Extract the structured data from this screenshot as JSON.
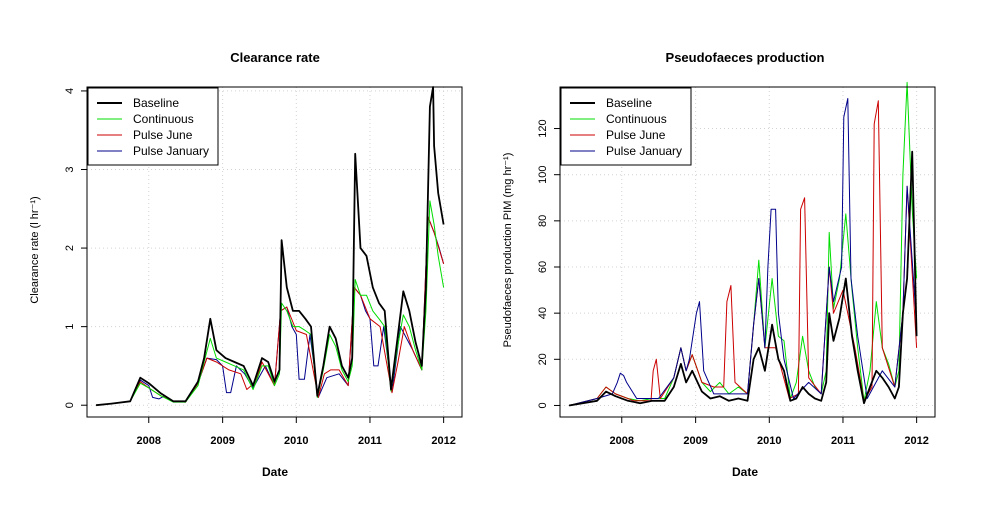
{
  "figure": {
    "background": "#ffffff"
  },
  "chart_data": [
    {
      "type": "line",
      "title": "Clearance rate",
      "xlabel": "Date",
      "ylabel": "Clearance rate  (l hr⁻¹)",
      "xlim": [
        "2007-03-01",
        "2012-04-01"
      ],
      "ylim": [
        -0.15,
        4.05
      ],
      "x_ticks": [
        {
          "date": "2008-01-01",
          "label": "2008"
        },
        {
          "date": "2009-01-01",
          "label": "2009"
        },
        {
          "date": "2010-01-01",
          "label": "2010"
        },
        {
          "date": "2011-01-01",
          "label": "2011"
        },
        {
          "date": "2012-01-01",
          "label": "2012"
        }
      ],
      "y_ticks": [
        {
          "value": 0,
          "label": "0"
        },
        {
          "value": 1,
          "label": "1"
        },
        {
          "value": 2,
          "label": "2"
        },
        {
          "value": 3,
          "label": "3"
        },
        {
          "value": 4,
          "label": "4"
        }
      ],
      "grid": true,
      "legend_position": "top-left",
      "series": [
        {
          "name": "Pulse January",
          "color": "#00008b",
          "x": [
            "2007-04-15",
            "2007-07-01",
            "2007-10-01",
            "2007-11-20",
            "2008-01-01",
            "2008-01-20",
            "2008-02-20",
            "2008-03-20",
            "2008-05-01",
            "2008-07-01",
            "2008-09-01",
            "2008-10-15",
            "2008-12-01",
            "2009-01-01",
            "2009-01-20",
            "2009-02-10",
            "2009-03-10",
            "2009-04-20",
            "2009-06-01",
            "2009-08-01",
            "2009-09-15",
            "2009-10-15",
            "2009-11-15",
            "2009-12-10",
            "2010-01-01",
            "2010-01-15",
            "2010-02-10",
            "2010-03-10",
            "2010-04-20",
            "2010-06-01",
            "2010-08-01",
            "2010-09-15",
            "2010-10-15",
            "2010-11-15",
            "2010-12-10",
            "2011-01-01",
            "2011-01-20",
            "2011-02-10",
            "2011-03-10",
            "2011-04-20",
            "2011-06-01",
            "2011-08-01",
            "2011-09-15",
            "2011-10-15",
            "2011-11-15",
            "2011-12-10",
            "2012-01-01"
          ],
          "values": [
            0,
            0.02,
            0.05,
            0.32,
            0.25,
            0.1,
            0.08,
            0.12,
            0.05,
            0.04,
            0.28,
            0.6,
            0.58,
            0.5,
            0.16,
            0.16,
            0.5,
            0.4,
            0.22,
            0.5,
            0.25,
            1.2,
            1.25,
            1.0,
            0.9,
            0.33,
            0.33,
            0.9,
            0.1,
            0.35,
            0.4,
            0.25,
            1.5,
            1.4,
            1.2,
            1.1,
            0.5,
            0.5,
            1.0,
            0.16,
            1.0,
            0.7,
            0.45,
            2.4,
            2.2,
            2.0,
            1.8
          ]
        },
        {
          "name": "Pulse June",
          "color": "#cc0000",
          "x": [
            "2007-04-15",
            "2007-07-01",
            "2007-10-01",
            "2007-11-20",
            "2008-01-01",
            "2008-03-01",
            "2008-05-01",
            "2008-07-01",
            "2008-09-01",
            "2008-10-15",
            "2008-12-01",
            "2009-02-01",
            "2009-04-01",
            "2009-05-01",
            "2009-06-15",
            "2009-07-15",
            "2009-09-15",
            "2009-10-15",
            "2009-11-15",
            "2010-01-01",
            "2010-02-20",
            "2010-04-20",
            "2010-05-20",
            "2010-06-20",
            "2010-08-01",
            "2010-09-15",
            "2010-10-15",
            "2010-11-15",
            "2011-01-01",
            "2011-02-20",
            "2011-04-20",
            "2011-05-20",
            "2011-06-20",
            "2011-08-01",
            "2011-09-15",
            "2011-10-15",
            "2011-11-15",
            "2012-01-01"
          ],
          "values": [
            0,
            0.02,
            0.05,
            0.3,
            0.22,
            0.12,
            0.05,
            0.04,
            0.28,
            0.6,
            0.55,
            0.45,
            0.4,
            0.2,
            0.3,
            0.55,
            0.25,
            1.2,
            1.25,
            0.95,
            0.9,
            0.1,
            0.4,
            0.45,
            0.45,
            0.25,
            1.5,
            1.4,
            1.1,
            1.0,
            0.16,
            0.55,
            1.0,
            0.7,
            0.45,
            2.4,
            2.2,
            1.8
          ]
        },
        {
          "name": "Continuous",
          "color": "#00dd00",
          "x": [
            "2007-04-15",
            "2007-07-01",
            "2007-10-01",
            "2007-11-20",
            "2008-01-01",
            "2008-03-01",
            "2008-05-01",
            "2008-07-01",
            "2008-09-01",
            "2008-10-01",
            "2008-11-01",
            "2008-12-01",
            "2009-01-15",
            "2009-03-01",
            "2009-04-15",
            "2009-06-01",
            "2009-07-15",
            "2009-08-15",
            "2009-09-15",
            "2009-10-10",
            "2009-10-20",
            "2009-11-15",
            "2009-12-15",
            "2010-01-15",
            "2010-02-15",
            "2010-03-15",
            "2010-04-15",
            "2010-05-15",
            "2010-06-15",
            "2010-07-15",
            "2010-08-15",
            "2010-09-15",
            "2010-10-05",
            "2010-10-20",
            "2010-11-15",
            "2010-12-15",
            "2011-01-15",
            "2011-02-15",
            "2011-03-15",
            "2011-04-15",
            "2011-05-15",
            "2011-06-15",
            "2011-07-15",
            "2011-08-15",
            "2011-09-15",
            "2011-10-05",
            "2011-10-25",
            "2011-11-15",
            "2011-12-05",
            "2012-01-01"
          ],
          "values": [
            0,
            0.02,
            0.05,
            0.28,
            0.22,
            0.12,
            0.04,
            0.04,
            0.25,
            0.55,
            0.85,
            0.6,
            0.55,
            0.5,
            0.45,
            0.2,
            0.5,
            0.5,
            0.25,
            0.4,
            1.3,
            1.2,
            1.0,
            1.0,
            0.95,
            0.9,
            0.1,
            0.45,
            0.9,
            0.75,
            0.45,
            0.3,
            0.5,
            1.6,
            1.4,
            1.4,
            1.2,
            1.1,
            1.0,
            0.18,
            0.7,
            1.15,
            1.0,
            0.7,
            0.45,
            1.2,
            2.6,
            2.3,
            1.9,
            1.5
          ]
        },
        {
          "name": "Baseline",
          "color": "#000000",
          "lineWidth": 1.8,
          "x": [
            "2007-04-15",
            "2007-07-01",
            "2007-10-01",
            "2007-11-20",
            "2008-01-01",
            "2008-03-01",
            "2008-05-01",
            "2008-07-01",
            "2008-09-01",
            "2008-10-01",
            "2008-11-01",
            "2008-12-01",
            "2009-01-15",
            "2009-03-01",
            "2009-04-15",
            "2009-06-01",
            "2009-07-15",
            "2009-08-15",
            "2009-09-15",
            "2009-10-10",
            "2009-10-20",
            "2009-11-15",
            "2009-12-15",
            "2010-01-15",
            "2010-02-15",
            "2010-03-15",
            "2010-04-15",
            "2010-05-15",
            "2010-06-15",
            "2010-07-15",
            "2010-08-15",
            "2010-09-15",
            "2010-10-05",
            "2010-10-20",
            "2010-11-15",
            "2010-12-15",
            "2011-01-15",
            "2011-02-15",
            "2011-03-15",
            "2011-04-15",
            "2011-05-15",
            "2011-06-15",
            "2011-07-15",
            "2011-08-15",
            "2011-09-15",
            "2011-10-05",
            "2011-10-25",
            "2011-11-10",
            "2011-11-15",
            "2011-12-05",
            "2012-01-01"
          ],
          "values": [
            0,
            0.02,
            0.05,
            0.35,
            0.28,
            0.15,
            0.05,
            0.05,
            0.3,
            0.6,
            1.1,
            0.7,
            0.6,
            0.55,
            0.5,
            0.25,
            0.6,
            0.55,
            0.3,
            0.45,
            2.1,
            1.5,
            1.2,
            1.2,
            1.1,
            1.0,
            0.12,
            0.5,
            1.0,
            0.85,
            0.5,
            0.35,
            0.6,
            3.2,
            2.0,
            1.9,
            1.5,
            1.3,
            1.2,
            0.2,
            0.8,
            1.45,
            1.2,
            0.8,
            0.5,
            1.5,
            3.8,
            4.05,
            3.3,
            2.7,
            2.3
          ]
        }
      ]
    },
    {
      "type": "line",
      "title": "Pseudofaeces production",
      "xlabel": "Date",
      "ylabel": "Pseudofaeces production PIM (mg hr⁻¹)",
      "xlim": [
        "2007-03-01",
        "2012-04-01"
      ],
      "ylim": [
        -5,
        138
      ],
      "x_ticks": [
        {
          "date": "2008-01-01",
          "label": "2008"
        },
        {
          "date": "2009-01-01",
          "label": "2009"
        },
        {
          "date": "2010-01-01",
          "label": "2010"
        },
        {
          "date": "2011-01-01",
          "label": "2011"
        },
        {
          "date": "2012-01-01",
          "label": "2012"
        }
      ],
      "y_ticks": [
        {
          "value": 0,
          "label": "0"
        },
        {
          "value": 20,
          "label": "20"
        },
        {
          "value": 40,
          "label": "40"
        },
        {
          "value": 60,
          "label": "60"
        },
        {
          "value": 80,
          "label": "80"
        },
        {
          "value": 100,
          "label": "100"
        },
        {
          "value": 120,
          "label": "120"
        }
      ],
      "grid": true,
      "legend_position": "top-left",
      "series": [
        {
          "name": "Continuous",
          "color": "#00dd00",
          "x": [
            "2007-04-15",
            "2007-09-01",
            "2007-10-15",
            "2007-12-01",
            "2008-02-01",
            "2008-04-01",
            "2008-06-01",
            "2008-08-01",
            "2008-09-15",
            "2008-10-20",
            "2008-11-15",
            "2008-12-15",
            "2009-02-01",
            "2009-03-15",
            "2009-05-01",
            "2009-06-15",
            "2009-08-01",
            "2009-09-15",
            "2009-10-15",
            "2009-11-10",
            "2009-12-10",
            "2010-01-15",
            "2010-02-15",
            "2010-03-15",
            "2010-04-15",
            "2010-05-15",
            "2010-06-15",
            "2010-07-15",
            "2010-08-15",
            "2010-09-15",
            "2010-10-10",
            "2010-10-25",
            "2010-11-15",
            "2010-12-15",
            "2011-01-15",
            "2011-02-15",
            "2011-03-15",
            "2011-04-15",
            "2011-05-15",
            "2011-06-15",
            "2011-07-15",
            "2011-08-15",
            "2011-09-15",
            "2011-10-05",
            "2011-10-25",
            "2011-11-15",
            "2011-12-10",
            "2012-01-01"
          ],
          "values": [
            0,
            3,
            8,
            5,
            3,
            2,
            3,
            3,
            12,
            25,
            15,
            22,
            10,
            6,
            10,
            5,
            8,
            5,
            35,
            63,
            25,
            55,
            30,
            28,
            3,
            10,
            30,
            15,
            8,
            5,
            15,
            75,
            42,
            55,
            83,
            50,
            25,
            2,
            15,
            45,
            25,
            18,
            8,
            15,
            100,
            140,
            85,
            55
          ]
        },
        {
          "name": "Pulse June",
          "color": "#cc0000",
          "x": [
            "2007-04-15",
            "2007-09-01",
            "2007-10-15",
            "2007-12-01",
            "2008-03-01",
            "2008-05-25",
            "2008-06-05",
            "2008-06-20",
            "2008-07-10",
            "2008-09-15",
            "2008-10-20",
            "2008-11-15",
            "2008-12-15",
            "2009-02-01",
            "2009-04-01",
            "2009-05-20",
            "2009-06-05",
            "2009-06-25",
            "2009-07-15",
            "2009-09-15",
            "2009-10-15",
            "2009-11-10",
            "2009-12-10",
            "2010-02-01",
            "2010-04-10",
            "2010-05-25",
            "2010-06-05",
            "2010-06-25",
            "2010-07-15",
            "2010-09-15",
            "2010-10-25",
            "2010-11-15",
            "2011-01-01",
            "2011-03-01",
            "2011-04-15",
            "2011-05-25",
            "2011-06-05",
            "2011-06-25",
            "2011-07-15",
            "2011-09-15",
            "2011-10-25",
            "2011-11-15",
            "2012-01-01"
          ],
          "values": [
            0,
            3,
            8,
            5,
            2,
            2,
            15,
            20,
            3,
            12,
            25,
            15,
            22,
            10,
            8,
            8,
            45,
            52,
            10,
            5,
            35,
            55,
            25,
            25,
            3,
            5,
            85,
            90,
            12,
            5,
            60,
            40,
            50,
            25,
            2,
            8,
            122,
            132,
            25,
            8,
            40,
            95,
            25
          ]
        },
        {
          "name": "Pulse January",
          "color": "#00008b",
          "x": [
            "2007-04-15",
            "2007-09-01",
            "2007-11-15",
            "2007-12-10",
            "2007-12-25",
            "2008-01-10",
            "2008-01-25",
            "2008-03-15",
            "2008-07-01",
            "2008-09-15",
            "2008-10-20",
            "2008-11-15",
            "2008-12-01",
            "2009-01-05",
            "2009-01-20",
            "2009-02-10",
            "2009-04-01",
            "2009-07-01",
            "2009-09-15",
            "2009-10-15",
            "2009-11-10",
            "2009-12-10",
            "2009-12-25",
            "2010-01-10",
            "2010-02-01",
            "2010-02-15",
            "2010-03-15",
            "2010-05-01",
            "2010-07-15",
            "2010-09-15",
            "2010-10-25",
            "2010-11-15",
            "2010-12-25",
            "2011-01-05",
            "2011-01-25",
            "2011-02-10",
            "2011-03-15",
            "2011-05-01",
            "2011-07-15",
            "2011-09-15",
            "2011-10-25",
            "2011-11-15",
            "2012-01-01"
          ],
          "values": [
            0,
            3,
            5,
            10,
            14,
            13,
            10,
            3,
            3,
            12,
            25,
            15,
            20,
            40,
            45,
            15,
            5,
            5,
            5,
            35,
            55,
            25,
            60,
            85,
            85,
            40,
            20,
            3,
            10,
            5,
            60,
            45,
            60,
            125,
            133,
            55,
            30,
            3,
            15,
            8,
            40,
            95,
            35
          ]
        },
        {
          "name": "Baseline",
          "color": "#000000",
          "lineWidth": 1.8,
          "x": [
            "2007-04-15",
            "2007-09-01",
            "2007-10-15",
            "2007-12-01",
            "2008-02-01",
            "2008-04-01",
            "2008-06-01",
            "2008-08-01",
            "2008-09-15",
            "2008-10-20",
            "2008-11-15",
            "2008-12-15",
            "2009-02-01",
            "2009-03-15",
            "2009-05-01",
            "2009-06-15",
            "2009-08-01",
            "2009-09-15",
            "2009-10-15",
            "2009-11-10",
            "2009-12-10",
            "2010-01-15",
            "2010-02-15",
            "2010-03-15",
            "2010-04-15",
            "2010-05-15",
            "2010-06-15",
            "2010-07-15",
            "2010-08-15",
            "2010-09-15",
            "2010-10-10",
            "2010-10-25",
            "2010-11-15",
            "2010-12-15",
            "2011-01-15",
            "2011-02-15",
            "2011-03-15",
            "2011-04-15",
            "2011-05-15",
            "2011-06-15",
            "2011-07-15",
            "2011-08-15",
            "2011-09-15",
            "2011-10-05",
            "2011-10-25",
            "2011-11-15",
            "2011-12-10",
            "2012-01-01"
          ],
          "values": [
            0,
            2,
            6,
            4,
            2,
            1,
            2,
            2,
            8,
            18,
            10,
            15,
            6,
            3,
            4,
            2,
            3,
            2,
            20,
            25,
            15,
            35,
            20,
            15,
            2,
            3,
            8,
            5,
            3,
            2,
            10,
            40,
            28,
            38,
            55,
            30,
            15,
            1,
            8,
            15,
            12,
            8,
            3,
            8,
            40,
            55,
            110,
            30
          ]
        }
      ]
    }
  ]
}
